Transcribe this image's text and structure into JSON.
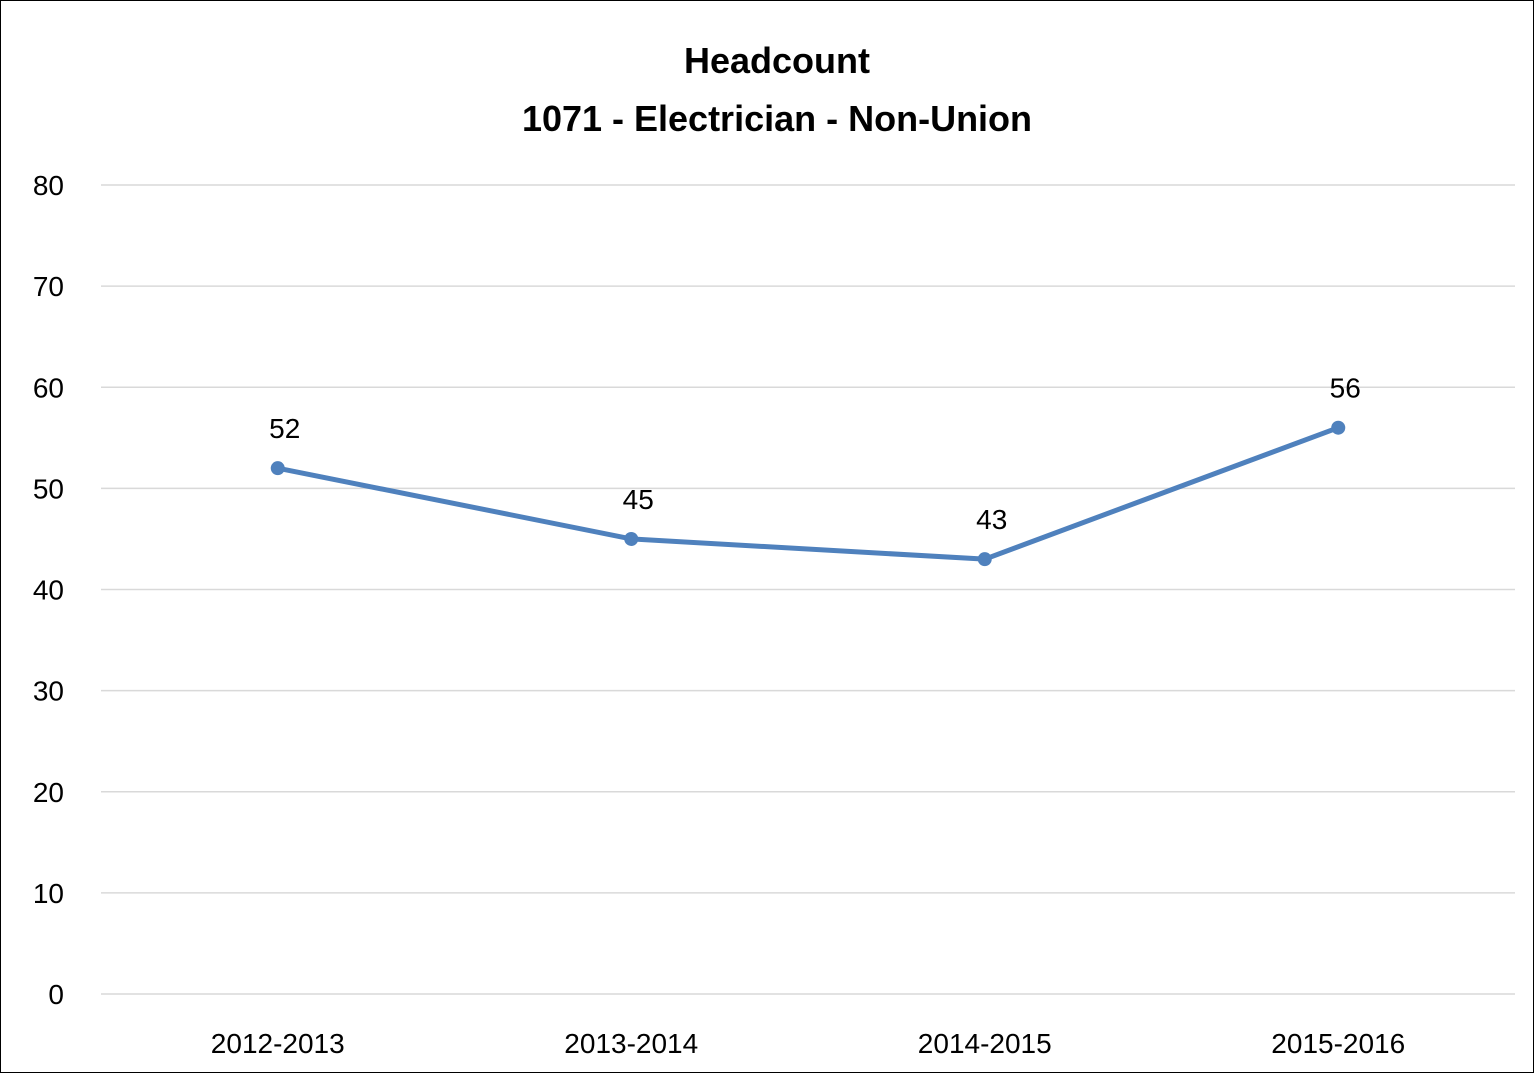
{
  "chart_data": {
    "type": "line",
    "title": "Headcount",
    "subtitle": "1071 - Electrician - Non-Union",
    "categories": [
      "2012-2013",
      "2013-2014",
      "2014-2015",
      "2015-2016"
    ],
    "series": [
      {
        "values": [
          52,
          45,
          43,
          56
        ],
        "color": "#4f81bd"
      }
    ],
    "ylim": [
      0,
      80
    ],
    "yticks": [
      "0",
      "10",
      "20",
      "30",
      "40",
      "50",
      "60",
      "70",
      "80"
    ],
    "grid": true,
    "data_labels": true
  }
}
